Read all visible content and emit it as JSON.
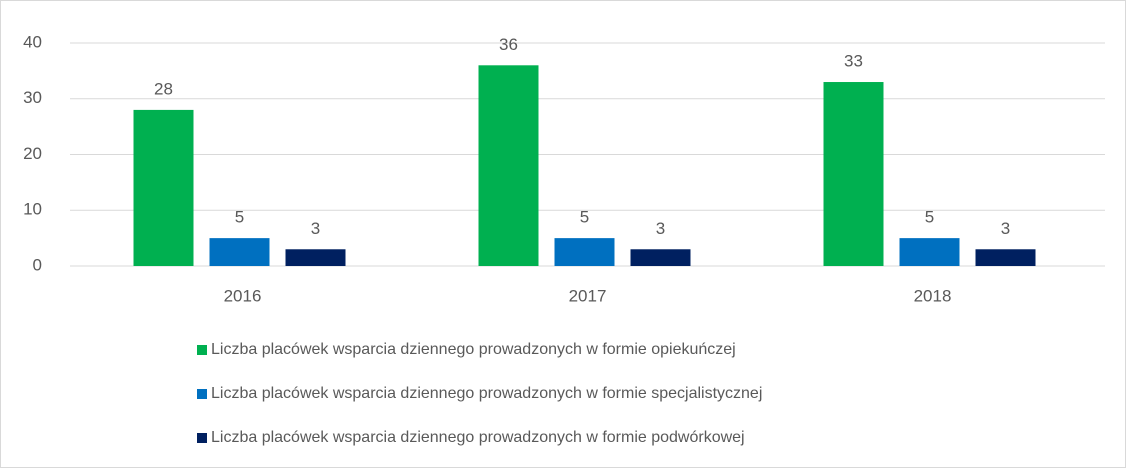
{
  "chart_data": {
    "type": "bar",
    "categories": [
      "2016",
      "2017",
      "2018"
    ],
    "series": [
      {
        "name": "Liczba placówek wsparcia dziennego prowadzonych w formie opiekuńczej",
        "color": "#00b050",
        "values": [
          28,
          36,
          33
        ]
      },
      {
        "name": "Liczba placówek wsparcia dziennego prowadzonych w formie specjalistycznej",
        "color": "#0070c0",
        "values": [
          5,
          5,
          5
        ]
      },
      {
        "name": "Liczba placówek wsparcia dziennego prowadzonych w formie podwórkowej",
        "color": "#002060",
        "values": [
          3,
          3,
          3
        ]
      }
    ],
    "ylim": [
      0,
      40
    ],
    "yticks": [
      0,
      10,
      20,
      30,
      40
    ],
    "grid": true,
    "legend": "bottom"
  }
}
